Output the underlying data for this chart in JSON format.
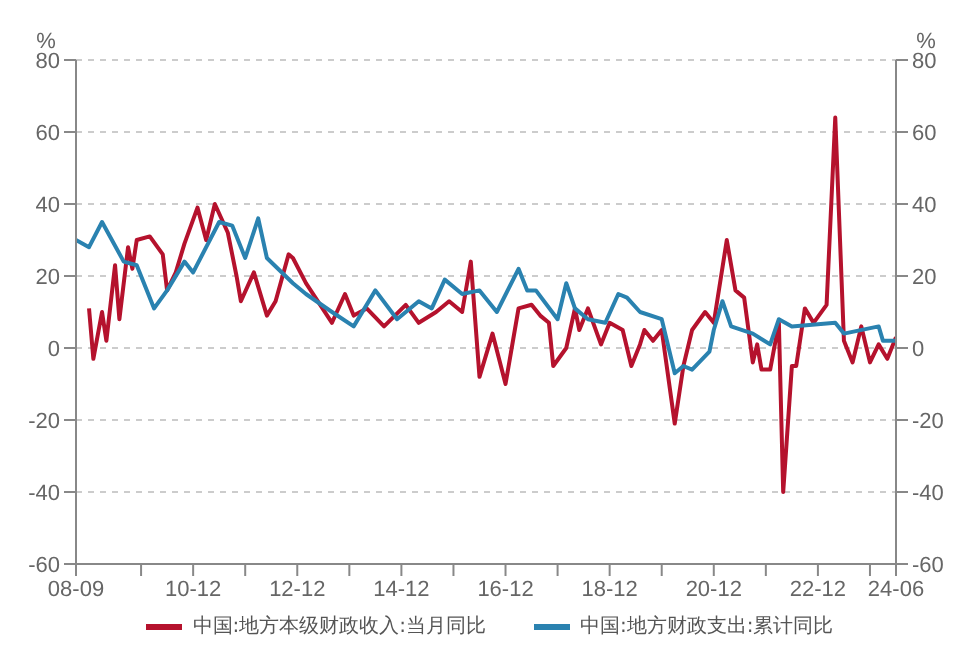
{
  "chart_data": {
    "type": "line",
    "ylabel": "%",
    "y2label": "%",
    "xlim": [
      "2008-09",
      "2024-06"
    ],
    "xticks": [
      {
        "value": "2008-09",
        "label": "08-09"
      },
      {
        "value": "2009-12",
        "label": null
      },
      {
        "value": "2010-12",
        "label": "10-12"
      },
      {
        "value": "2011-12",
        "label": null
      },
      {
        "value": "2012-12",
        "label": "12-12"
      },
      {
        "value": "2013-12",
        "label": null
      },
      {
        "value": "2014-12",
        "label": "14-12"
      },
      {
        "value": "2015-12",
        "label": null
      },
      {
        "value": "2016-12",
        "label": "16-12"
      },
      {
        "value": "2017-12",
        "label": null
      },
      {
        "value": "2018-12",
        "label": "18-12"
      },
      {
        "value": "2019-12",
        "label": null
      },
      {
        "value": "2020-12",
        "label": "20-12"
      },
      {
        "value": "2021-12",
        "label": null
      },
      {
        "value": "2022-12",
        "label": "22-12"
      },
      {
        "value": "2023-12",
        "label": null
      },
      {
        "value": "2024-06",
        "label": "24-06"
      }
    ],
    "ylim": [
      -60,
      80
    ],
    "yticks": [
      -60,
      -40,
      -20,
      0,
      20,
      40,
      60,
      80
    ],
    "y2lim": [
      -60,
      80
    ],
    "y2ticks": [
      -60,
      -40,
      -20,
      0,
      20,
      40,
      60,
      80
    ],
    "grid": "y",
    "legend": "bottom",
    "marker": "none",
    "line_style": "solid",
    "series": [
      {
        "name": "中国:地方本级财政收入:当月同比",
        "color": "#b5122d",
        "x": [
          "2008-12",
          "2009-01",
          "2009-03",
          "2009-04",
          "2009-06",
          "2009-07",
          "2009-09",
          "2009-10",
          "2009-11",
          "2010-02",
          "2010-05",
          "2010-06",
          "2010-08",
          "2010-10",
          "2011-01",
          "2011-03",
          "2011-05",
          "2011-08",
          "2011-10",
          "2011-11",
          "2012-02",
          "2012-05",
          "2012-07",
          "2012-10",
          "2012-11",
          "2013-02",
          "2013-08",
          "2013-11",
          "2014-01",
          "2014-04",
          "2014-08",
          "2015-01",
          "2015-04",
          "2015-08",
          "2015-11",
          "2016-02",
          "2016-04",
          "2016-06",
          "2016-09",
          "2016-12",
          "2017-03",
          "2017-06",
          "2017-08",
          "2017-10",
          "2017-11",
          "2018-02",
          "2018-04",
          "2018-05",
          "2018-07",
          "2018-10",
          "2018-12",
          "2019-03",
          "2019-05",
          "2019-07",
          "2019-08",
          "2019-10",
          "2019-12",
          "2020-03",
          "2020-05",
          "2020-07",
          "2020-10",
          "2020-12",
          "2021-03",
          "2021-05",
          "2021-07",
          "2021-09",
          "2021-10",
          "2021-11",
          "2022-01",
          "2022-03",
          "2022-04",
          "2022-06",
          "2022-07",
          "2022-09",
          "2022-11",
          "2023-02",
          "2023-04",
          "2023-06",
          "2023-08",
          "2023-10",
          "2023-12",
          "2024-02",
          "2024-04",
          "2024-06"
        ],
        "values": [
          11,
          -3,
          10,
          2,
          23,
          8,
          28,
          22,
          30,
          31,
          26,
          16,
          21,
          29,
          39,
          30,
          40,
          32,
          20,
          13,
          21,
          9,
          13,
          26,
          25,
          18,
          7,
          15,
          9,
          11,
          6,
          12,
          7,
          10,
          13,
          10,
          24,
          -8,
          4,
          -10,
          11,
          12,
          9,
          7,
          -5,
          0,
          11,
          5,
          11,
          1,
          7,
          5,
          -5,
          1,
          5,
          2,
          5,
          -21,
          -5,
          5,
          10,
          7,
          30,
          16,
          14,
          -4,
          1,
          -6,
          -6,
          7,
          -40,
          -5,
          -5,
          11,
          7,
          12,
          64,
          2,
          -4,
          6,
          -4,
          1,
          -3,
          3
        ]
      },
      {
        "name": "中国:地方财政支出:累计同比",
        "color": "#2a82b0",
        "x": [
          "2008-09",
          "2008-12",
          "2009-03",
          "2009-08",
          "2009-11",
          "2010-03",
          "2010-06",
          "2010-10",
          "2010-12",
          "2011-06",
          "2011-09",
          "2011-12",
          "2012-03",
          "2012-05",
          "2012-11",
          "2013-02",
          "2013-08",
          "2014-01",
          "2014-06",
          "2014-11",
          "2015-04",
          "2015-07",
          "2015-10",
          "2016-02",
          "2016-06",
          "2016-10",
          "2017-03",
          "2017-05",
          "2017-07",
          "2017-12",
          "2018-02",
          "2018-04",
          "2018-07",
          "2018-11",
          "2019-02",
          "2019-04",
          "2019-07",
          "2019-12",
          "2020-03",
          "2020-05",
          "2020-07",
          "2020-11",
          "2020-12",
          "2021-02",
          "2021-04",
          "2021-09",
          "2022-01",
          "2022-03",
          "2022-06",
          "2023-04",
          "2023-06",
          "2024-02",
          "2024-03",
          "2024-06"
        ],
        "values": [
          30,
          28,
          35,
          24,
          23,
          11,
          16,
          24,
          21,
          35,
          34,
          25,
          36,
          25,
          18,
          15,
          10,
          6,
          16,
          8,
          13,
          11,
          19,
          15,
          16,
          10,
          22,
          16,
          16,
          8,
          18,
          11,
          8,
          7,
          15,
          14,
          10,
          8,
          -7,
          -5,
          -6,
          -1,
          5,
          13,
          6,
          4,
          1,
          8,
          6,
          7,
          4,
          6,
          2,
          2
        ]
      }
    ]
  }
}
